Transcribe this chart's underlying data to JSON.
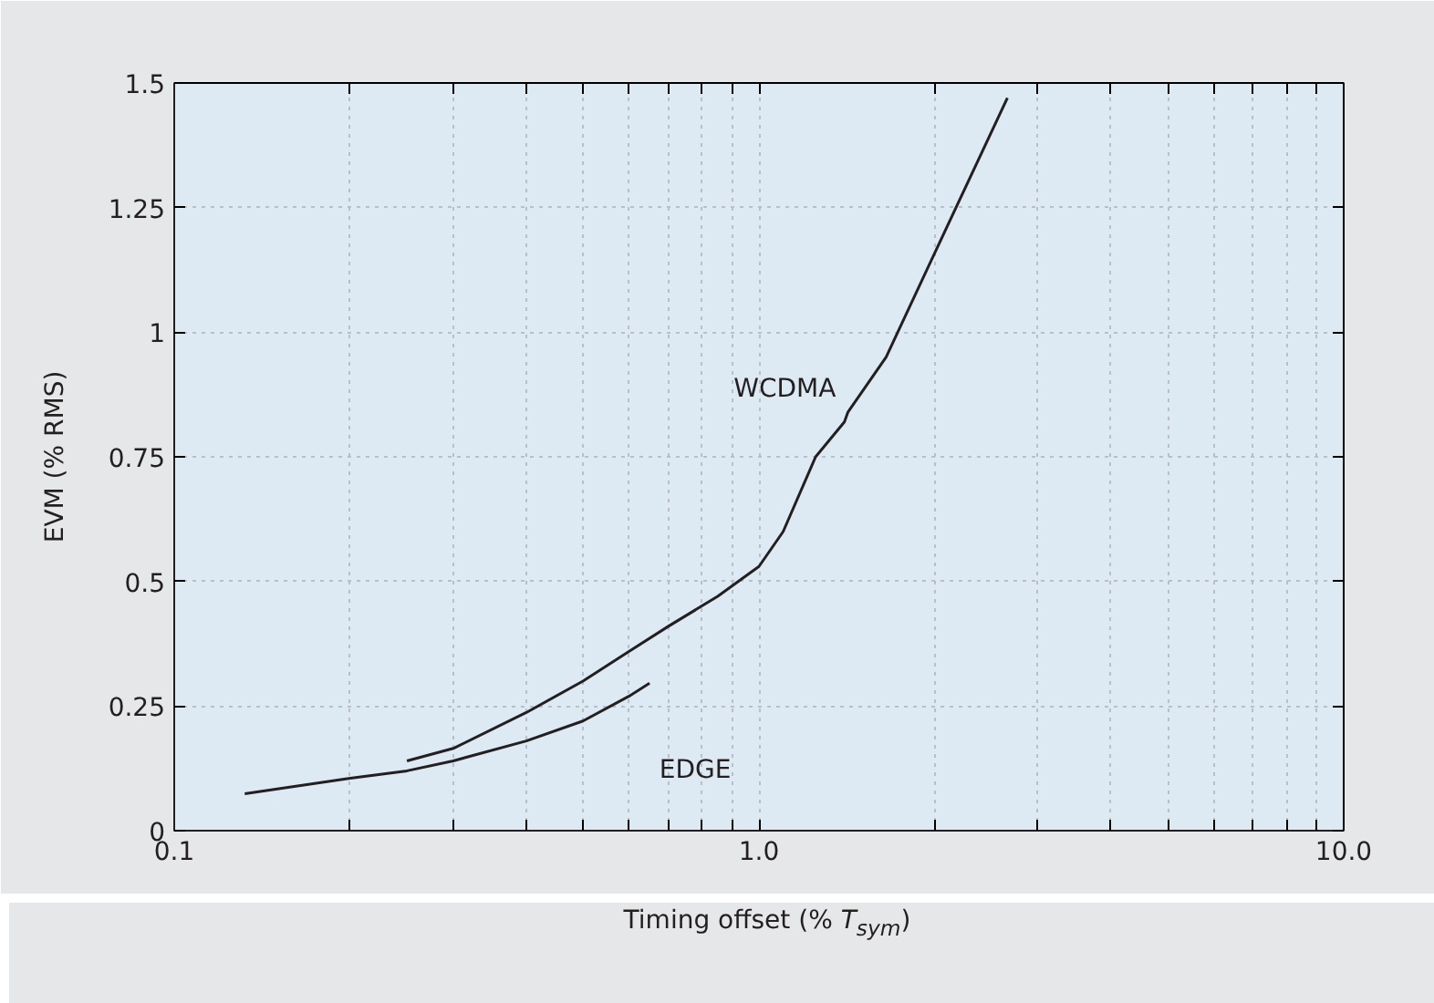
{
  "chart_data": {
    "type": "line",
    "xlabel": "Timing offset (% T$_{sym}$)",
    "ylabel": "EVM (% RMS)",
    "log": "x",
    "xlim": [
      0.1,
      10
    ],
    "ylim": [
      0,
      1.5
    ],
    "xticks": [
      {
        "value": 0.1,
        "label": "0.1"
      },
      {
        "value": 0.2,
        "label": null
      },
      {
        "value": 0.3,
        "label": null
      },
      {
        "value": 0.4,
        "label": null
      },
      {
        "value": 0.5,
        "label": null
      },
      {
        "value": 0.6,
        "label": null
      },
      {
        "value": 0.7,
        "label": null
      },
      {
        "value": 0.8,
        "label": null
      },
      {
        "value": 0.9,
        "label": null
      },
      {
        "value": 1,
        "label": "1.0"
      },
      {
        "value": 2,
        "label": null
      },
      {
        "value": 3,
        "label": null
      },
      {
        "value": 4,
        "label": null
      },
      {
        "value": 5,
        "label": null
      },
      {
        "value": 6,
        "label": null
      },
      {
        "value": 7,
        "label": null
      },
      {
        "value": 8,
        "label": null
      },
      {
        "value": 9,
        "label": null
      },
      {
        "value": 10,
        "label": "10.0"
      }
    ],
    "yticks": [
      0,
      0.25,
      0.5,
      0.75,
      1,
      1.25,
      1.5
    ],
    "grid": true,
    "marker": "none",
    "line_style": "solid",
    "series": [
      {
        "name": "WCDMA",
        "color": "#231f20",
        "x": [
          0.25,
          0.3,
          0.4,
          0.5,
          0.6,
          0.7,
          0.85,
          1.0,
          1.1,
          1.25,
          1.4,
          1.42,
          1.65,
          2.0,
          2.66
        ],
        "values": [
          0.14,
          0.165,
          0.237,
          0.3,
          0.36,
          0.41,
          0.47,
          0.53,
          0.6,
          0.75,
          0.82,
          0.84,
          0.95,
          1.16,
          1.47
        ]
      },
      {
        "name": "EDGE",
        "color": "#231f20",
        "x": [
          0.132,
          0.2,
          0.25,
          0.3,
          0.4,
          0.5,
          0.6,
          0.65
        ],
        "values": [
          0.074,
          0.105,
          0.12,
          0.14,
          0.18,
          0.22,
          0.27,
          0.296
        ]
      }
    ]
  }
}
